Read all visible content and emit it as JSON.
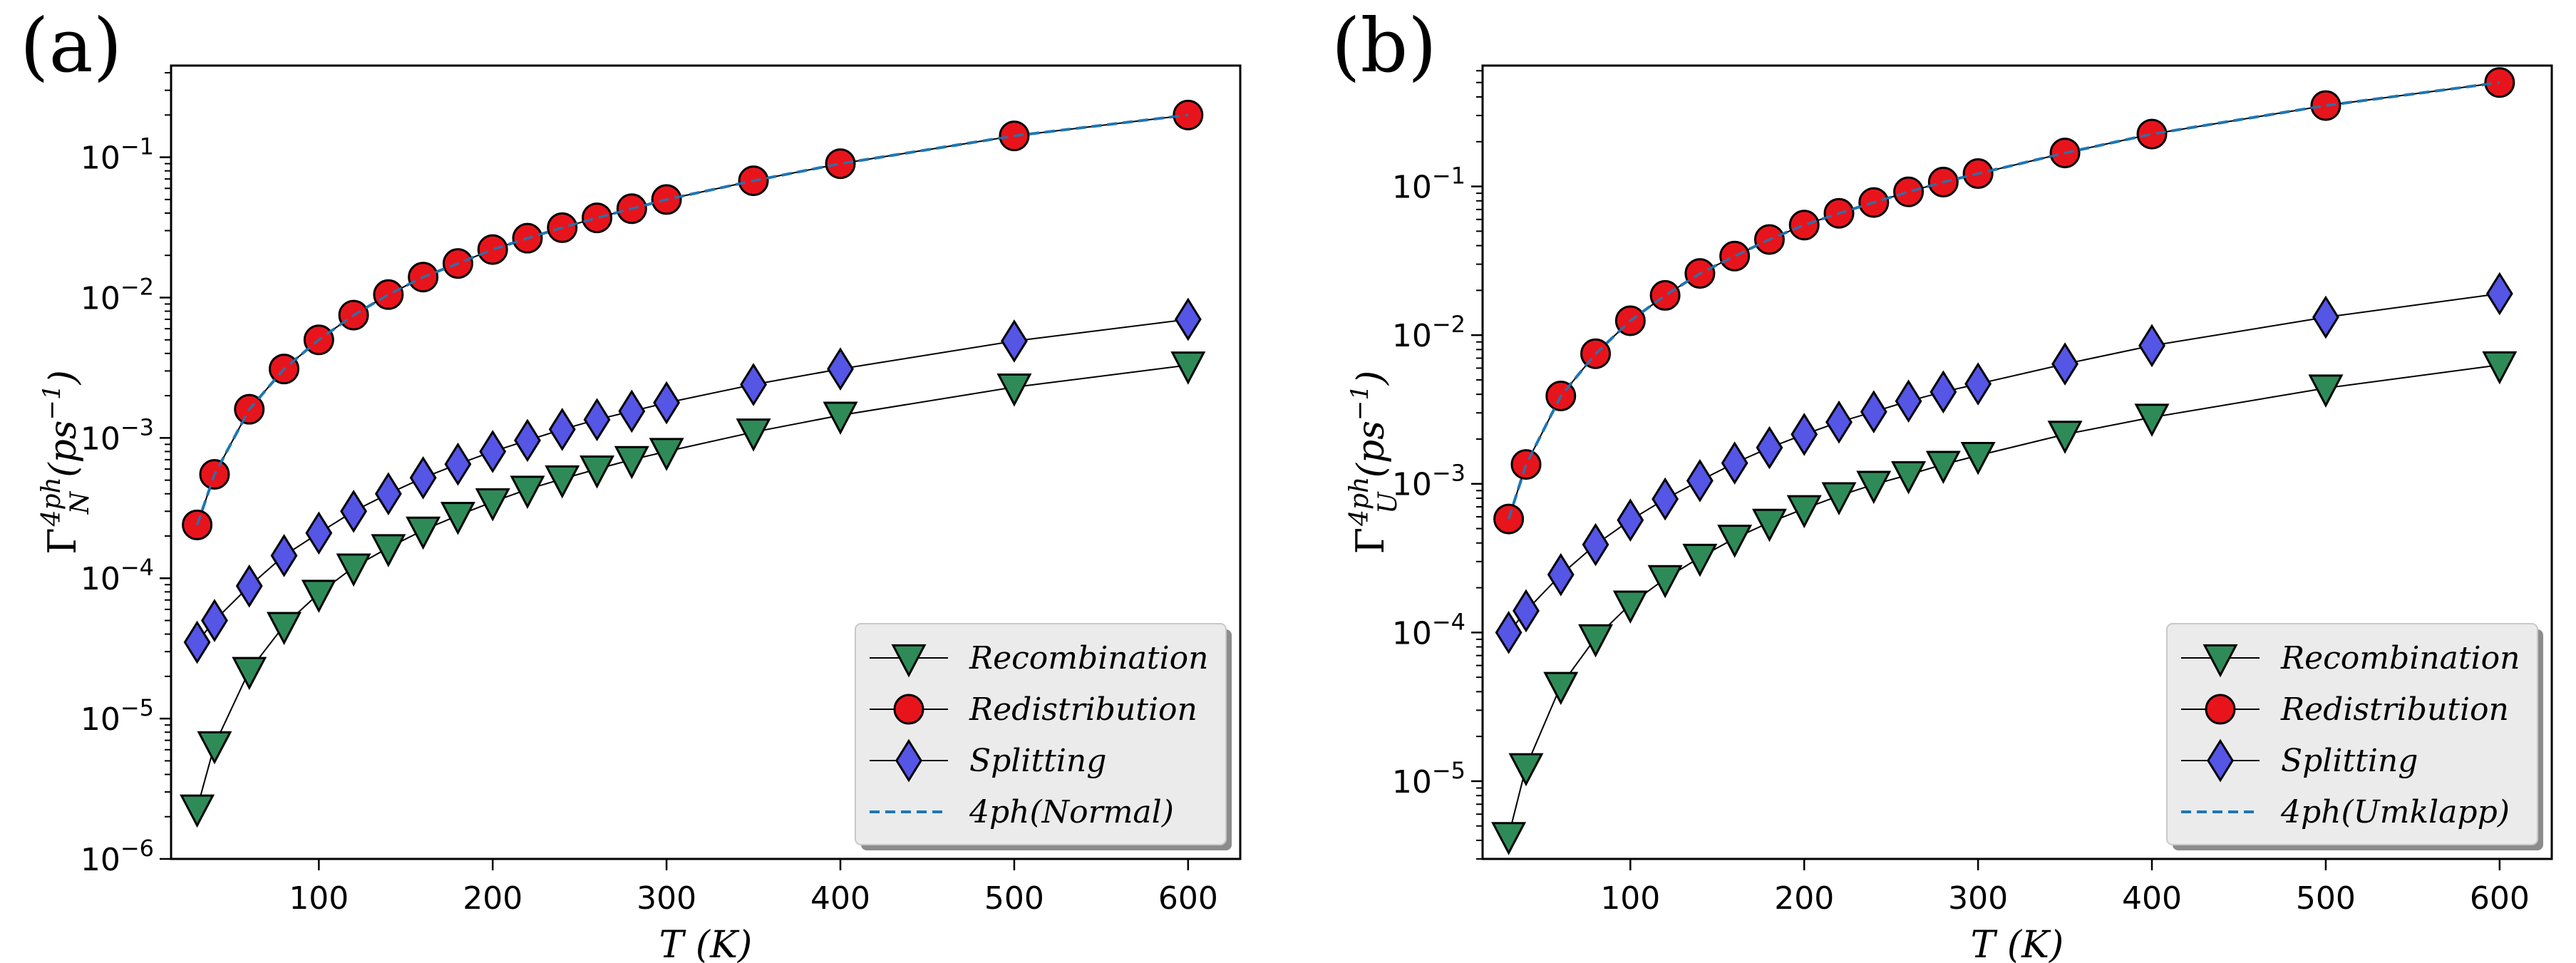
{
  "chart_data": [
    {
      "type": "line",
      "panel_label": "(a)",
      "xlabel": "T (K)",
      "ylabel": "Γ_N^{4ph} (ps^{-1})",
      "ylabel_parts": {
        "base": "Γ",
        "sub": "N",
        "sup": "4ph",
        "unit": "(ps",
        "unit_sup": "−1",
        "unit_close": ")"
      },
      "yscale": "log",
      "xlim": [
        15,
        630
      ],
      "ylim": [
        1e-06,
        0.45
      ],
      "xticks": [
        100,
        200,
        300,
        400,
        500,
        600
      ],
      "yticks": [
        {
          "value": 1e-06,
          "exp": "−6"
        },
        {
          "value": 1e-05,
          "exp": "−5"
        },
        {
          "value": 0.0001,
          "exp": "−4"
        },
        {
          "value": 0.001,
          "exp": "−3"
        },
        {
          "value": 0.01,
          "exp": "−2"
        },
        {
          "value": 0.1,
          "exp": "−1"
        }
      ],
      "legend_position": "lower right",
      "x": [
        30,
        40,
        60,
        80,
        100,
        120,
        140,
        160,
        180,
        200,
        220,
        240,
        260,
        280,
        300,
        350,
        400,
        500,
        600
      ],
      "series": [
        {
          "name": "Recombination",
          "marker": "triangle-down",
          "color": "#2e8b57",
          "values": [
            2.3e-06,
            6.5e-06,
            2.2e-05,
            4.6e-05,
            7.8e-05,
            0.00012,
            0.000165,
            0.00022,
            0.00028,
            0.00035,
            0.00043,
            0.00051,
            0.0006,
            0.0007,
            0.0008,
            0.0011,
            0.00145,
            0.0023,
            0.0033
          ]
        },
        {
          "name": "Redistribution",
          "marker": "circle",
          "color": "#e8141c",
          "values": [
            0.00024,
            0.00055,
            0.0016,
            0.0031,
            0.005,
            0.0075,
            0.0105,
            0.014,
            0.0175,
            0.022,
            0.0265,
            0.0315,
            0.037,
            0.043,
            0.05,
            0.068,
            0.09,
            0.142,
            0.2
          ]
        },
        {
          "name": "Splitting",
          "marker": "diamond",
          "color": "#5555e6",
          "values": [
            3.5e-05,
            5e-05,
            8.8e-05,
            0.000145,
            0.00021,
            0.0003,
            0.0004,
            0.00052,
            0.00065,
            0.0008,
            0.00096,
            0.00115,
            0.00135,
            0.00155,
            0.00178,
            0.0024,
            0.0031,
            0.0049,
            0.007
          ]
        },
        {
          "name": "4ph(Normal)",
          "marker": "dashed",
          "color": "#1f77b4",
          "values": [
            0.00024,
            0.00055,
            0.0016,
            0.0031,
            0.005,
            0.0075,
            0.0105,
            0.014,
            0.0175,
            0.022,
            0.0265,
            0.0315,
            0.037,
            0.043,
            0.05,
            0.068,
            0.09,
            0.142,
            0.2
          ]
        }
      ]
    },
    {
      "type": "line",
      "panel_label": "(b)",
      "xlabel": "T (K)",
      "ylabel": "Γ_U^{4ph} (ps^{-1})",
      "ylabel_parts": {
        "base": "Γ",
        "sub": "U",
        "sup": "4ph",
        "unit": "(ps",
        "unit_sup": "−1",
        "unit_close": ")"
      },
      "yscale": "log",
      "xlim": [
        15,
        630
      ],
      "ylim": [
        3e-06,
        0.65
      ],
      "xticks": [
        100,
        200,
        300,
        400,
        500,
        600
      ],
      "yticks": [
        {
          "value": 1e-05,
          "exp": "−5"
        },
        {
          "value": 0.0001,
          "exp": "−4"
        },
        {
          "value": 0.001,
          "exp": "−3"
        },
        {
          "value": 0.01,
          "exp": "−2"
        },
        {
          "value": 0.1,
          "exp": "−1"
        }
      ],
      "legend_position": "lower right",
      "x": [
        30,
        40,
        60,
        80,
        100,
        120,
        140,
        160,
        180,
        200,
        220,
        240,
        260,
        280,
        300,
        350,
        400,
        500,
        600
      ],
      "series": [
        {
          "name": "Recombination",
          "marker": "triangle-down",
          "color": "#2e8b57",
          "values": [
            4.3e-06,
            1.25e-05,
            4.4e-05,
            9.2e-05,
            0.000155,
            0.00023,
            0.00032,
            0.00043,
            0.00055,
            0.00068,
            0.00083,
            0.00099,
            0.00115,
            0.00135,
            0.00155,
            0.00215,
            0.0028,
            0.0044,
            0.0063
          ]
        },
        {
          "name": "Redistribution",
          "marker": "circle",
          "color": "#e8141c",
          "values": [
            0.00058,
            0.00135,
            0.0039,
            0.0075,
            0.0125,
            0.0185,
            0.026,
            0.034,
            0.044,
            0.055,
            0.066,
            0.078,
            0.092,
            0.107,
            0.122,
            0.168,
            0.225,
            0.35,
            0.5
          ]
        },
        {
          "name": "Splitting",
          "marker": "diamond",
          "color": "#5555e6",
          "values": [
            0.0001,
            0.00014,
            0.000245,
            0.00039,
            0.00057,
            0.00079,
            0.00105,
            0.00138,
            0.00175,
            0.00215,
            0.0026,
            0.00305,
            0.0036,
            0.00415,
            0.0047,
            0.0064,
            0.0085,
            0.0132,
            0.019
          ]
        },
        {
          "name": "4ph(Umklapp)",
          "marker": "dashed",
          "color": "#1f77b4",
          "values": [
            0.00058,
            0.00135,
            0.0039,
            0.0075,
            0.0125,
            0.0185,
            0.026,
            0.034,
            0.044,
            0.055,
            0.066,
            0.078,
            0.092,
            0.107,
            0.122,
            0.168,
            0.225,
            0.35,
            0.5
          ]
        }
      ]
    }
  ]
}
